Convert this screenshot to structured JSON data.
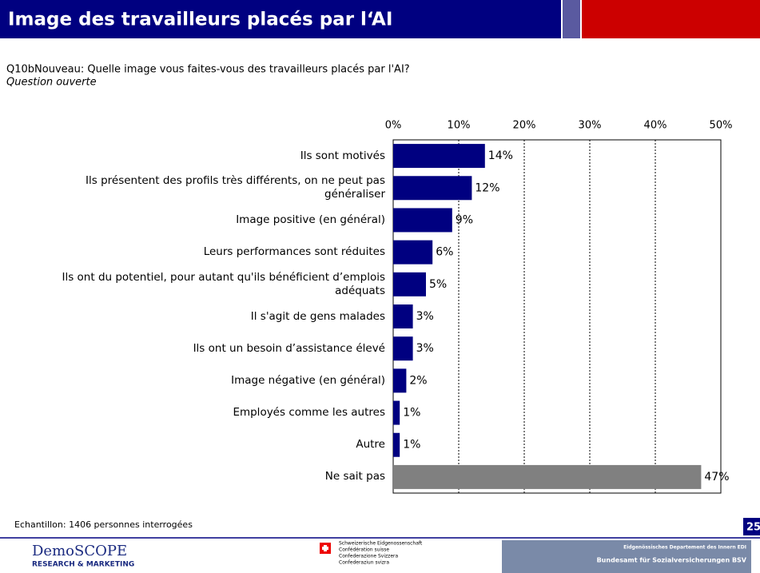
{
  "chart_data": {
    "type": "bar",
    "orientation": "horizontal",
    "title": "Image des travailleurs placés par l‘AI",
    "subtitle": "Q10bNouveau: Quelle image vous faites-vous des travailleurs placés par l'AI?",
    "annotation": "Question ouverte",
    "categories": [
      "Ils sont motivés",
      "Ils présentent des profils très différents, on ne peut pas généraliser",
      "Image positive (en général)",
      "Leurs performances sont réduites",
      "Ils ont du potentiel, pour autant qu'ils bénéficient d’emplois adéquats",
      "Il s'agit de gens malades",
      "Ils ont un besoin d’assistance élevé",
      "Image négative (en général)",
      "Employés comme les autres",
      "Autre",
      "Ne sait pas"
    ],
    "values": [
      14,
      12,
      9,
      6,
      5,
      3,
      3,
      2,
      1,
      1,
      47
    ],
    "value_labels": [
      "14%",
      "12%",
      "9%",
      "6%",
      "5%",
      "3%",
      "3%",
      "2%",
      "1%",
      "1%",
      "47%"
    ],
    "colors": [
      "#000080",
      "#000080",
      "#000080",
      "#000080",
      "#000080",
      "#000080",
      "#000080",
      "#000080",
      "#000080",
      "#000080",
      "#808080"
    ],
    "xlim": [
      0,
      50
    ],
    "xticks": [
      {
        "value": 0,
        "label": "0%"
      },
      {
        "value": 10,
        "label": "10%"
      },
      {
        "value": 20,
        "label": "20%"
      },
      {
        "value": 30,
        "label": "30%"
      },
      {
        "value": 40,
        "label": "40%"
      },
      {
        "value": 50,
        "label": "50%"
      }
    ],
    "grid": true
  },
  "footer": {
    "sample": "Echantillon: 1406 personnes interrogées",
    "page": "25",
    "logo": "DemoSCOPE",
    "logo_sub": "RESEARCH & MARKETING",
    "swiss": [
      "Schweizerische Eidgenossenschaft",
      "Confédération suisse",
      "Confederazione Svizzera",
      "Confederaziun svizra"
    ],
    "banner": [
      "Eidgenössisches Departement des Innern EDI",
      "Bundesamt für Sozialversicherungen BSV"
    ]
  }
}
